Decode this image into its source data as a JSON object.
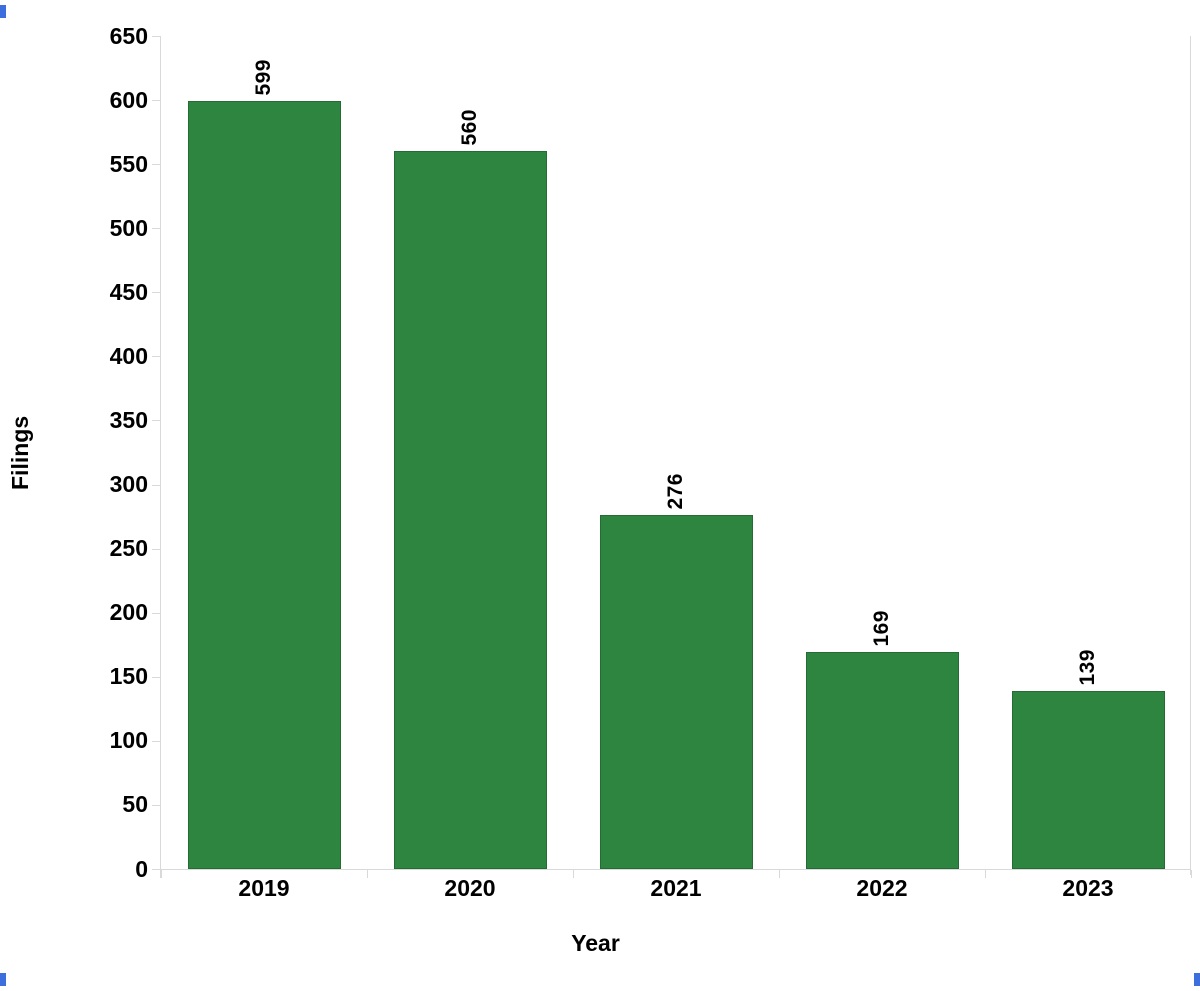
{
  "chart_data": {
    "type": "bar",
    "categories": [
      "2019",
      "2020",
      "2021",
      "2022",
      "2023"
    ],
    "values": [
      599,
      560,
      276,
      169,
      139
    ],
    "value_labels": [
      "599",
      "560",
      "276",
      "169",
      "139"
    ],
    "title": "",
    "xlabel": "Year",
    "ylabel": "Filings",
    "ylim": [
      0,
      650
    ],
    "ytick_step": 50,
    "yticks": [
      0,
      50,
      100,
      150,
      200,
      250,
      300,
      350,
      400,
      450,
      500,
      550,
      600,
      650
    ],
    "grid": false,
    "legend": false,
    "value_label_rotation_deg": 90,
    "bar_color": "#2E8540",
    "bar_edge_color": "#256B35",
    "axis_color": "#D9D9D9",
    "text_color": "#000000"
  },
  "artifacts": {
    "corner_mark_color": "#3D6EDD"
  }
}
